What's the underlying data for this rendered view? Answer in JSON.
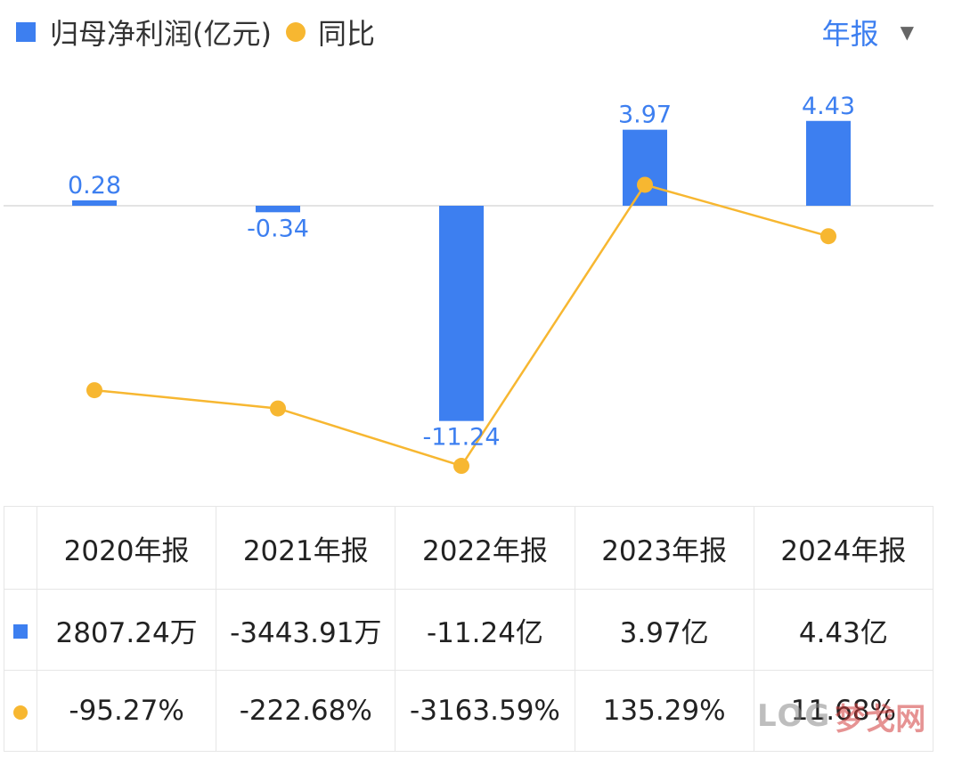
{
  "legend": {
    "bar_label": "归母净利润(亿元)",
    "line_label": "同比"
  },
  "period_selector": {
    "label": "年报",
    "caret": "▼"
  },
  "colors": {
    "bar": "#3d7ff0",
    "line": "#f7b731",
    "negative": "#2aa66e",
    "positive": "#e84545"
  },
  "chart_data": {
    "type": "bar",
    "categories": [
      "2020年报",
      "2021年报",
      "2022年报",
      "2023年报",
      "2024年报"
    ],
    "series": [
      {
        "name": "归母净利润(亿元)",
        "type": "bar",
        "values": [
          0.28,
          -0.34,
          -11.24,
          3.97,
          4.43
        ],
        "labels": [
          "0.28",
          "-0.34",
          "-11.24",
          "3.97",
          "4.43"
        ]
      },
      {
        "name": "同比",
        "type": "line",
        "values": [
          -95.27,
          -222.68,
          -3163.59,
          135.29,
          11.68
        ]
      }
    ],
    "axis_lines": "zero line only",
    "grid": false
  },
  "table": {
    "headers": [
      "2020年报",
      "2021年报",
      "2022年报",
      "2023年报",
      "2024年报"
    ],
    "profit_row": [
      "2807.24万",
      "-3443.91万",
      "-11.24亿",
      "3.97亿",
      "4.43亿"
    ],
    "yoy_row": [
      "-95.27%",
      "-222.68%",
      "-3163.59%",
      "135.29%",
      "11.68%"
    ]
  },
  "watermark": {
    "text_a": "LOG",
    "text_b": "梦戈网"
  }
}
